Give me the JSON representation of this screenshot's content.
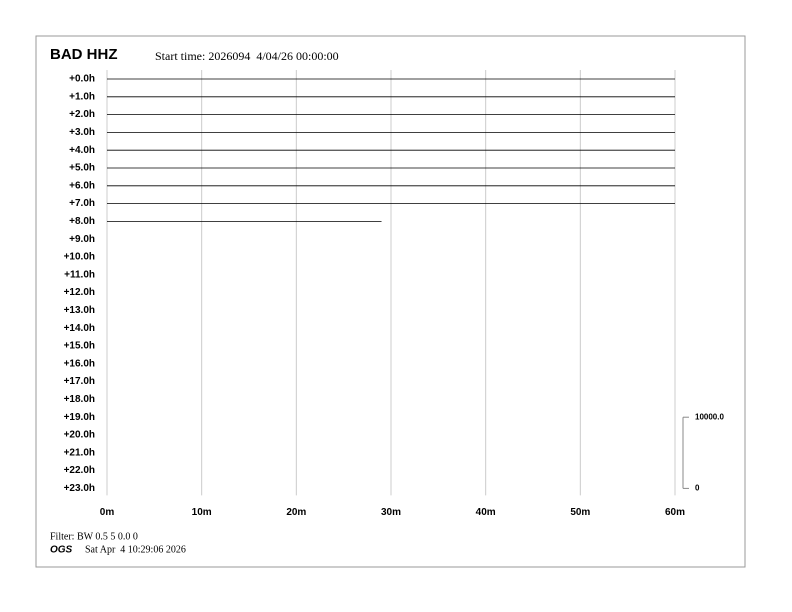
{
  "chart_data": {
    "type": "helicorder",
    "title": "BAD HHZ",
    "subtitle": "Start time: 2026094  4/04/26 00:00:00",
    "categories": [
      "+0.0h",
      "+1.0h",
      "+2.0h",
      "+3.0h",
      "+4.0h",
      "+5.0h",
      "+6.0h",
      "+7.0h",
      "+8.0h",
      "+9.0h",
      "+10.0h",
      "+11.0h",
      "+12.0h",
      "+13.0h",
      "+14.0h",
      "+15.0h",
      "+16.0h",
      "+17.0h",
      "+18.0h",
      "+19.0h",
      "+20.0h",
      "+21.0h",
      "+22.0h",
      "+23.0h"
    ],
    "values": [
      60,
      60,
      60,
      60,
      60,
      60,
      60,
      60,
      29,
      null,
      null,
      null,
      null,
      null,
      null,
      null,
      null,
      null,
      null,
      null,
      null,
      null,
      null,
      null
    ],
    "color": "#000000",
    "xlim": [
      0,
      60
    ],
    "xticks": [
      {
        "value": 0,
        "label": "0m"
      },
      {
        "value": 10,
        "label": "10m"
      },
      {
        "value": 20,
        "label": "20m"
      },
      {
        "value": 30,
        "label": "30m"
      },
      {
        "value": 40,
        "label": "40m"
      },
      {
        "value": 50,
        "label": "50m"
      },
      {
        "value": 60,
        "label": "60m"
      }
    ],
    "grid": true,
    "scale_ticks": [
      {
        "value": 0,
        "label": "0"
      },
      {
        "value": 10000,
        "label": "10000.0"
      }
    ],
    "filter": "Filter: BW 0.5 5 0.0 0",
    "agency": "OGS",
    "timestamp": "Sat Apr  4 10:29:06 2026"
  }
}
